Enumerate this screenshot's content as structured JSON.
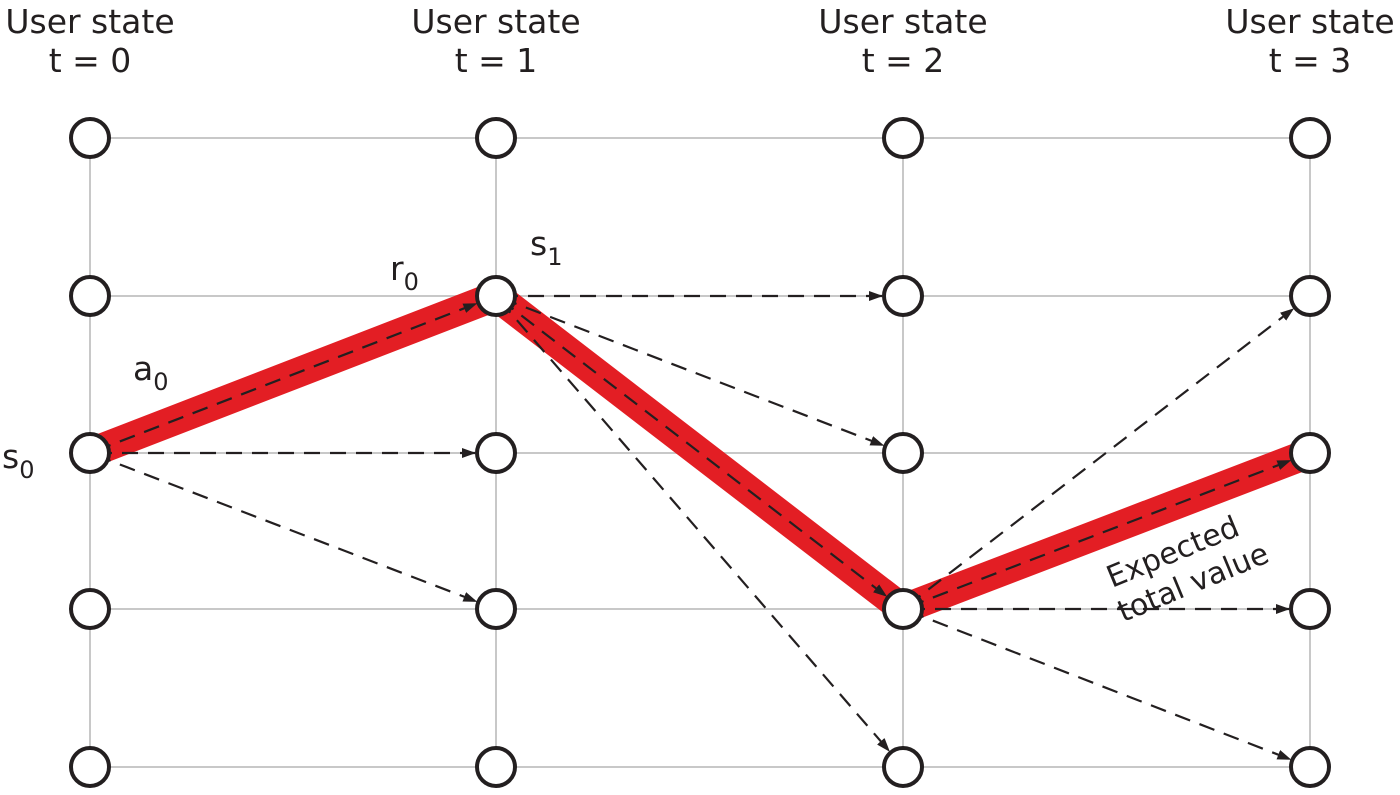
{
  "diagram": {
    "columns": [
      {
        "title": "User state",
        "subtitle": "t = 0"
      },
      {
        "title": "User state",
        "subtitle": "t = 1"
      },
      {
        "title": "User state",
        "subtitle": "t = 2"
      },
      {
        "title": "User state",
        "subtitle": "t = 3"
      }
    ],
    "states_per_column": 5,
    "labels": {
      "s0": {
        "base": "s",
        "index": "0"
      },
      "a0": {
        "base": "a",
        "index": "0"
      },
      "r0": {
        "base": "r",
        "index": "0"
      },
      "s1": {
        "base": "s",
        "index": "1"
      }
    },
    "annotation": {
      "line1": "Expected",
      "line2": "total value"
    },
    "highlight_color": "#e31e24",
    "line_color": "#231f20",
    "grid_color": "#c8c8c8",
    "node_stroke": "#231f20",
    "node_fill": "#ffffff",
    "highlighted_path": [
      [
        0,
        2
      ],
      [
        1,
        1
      ],
      [
        2,
        3
      ],
      [
        3,
        2
      ]
    ],
    "dashed_transitions": [
      {
        "from": [
          0,
          2
        ],
        "to": [
          1,
          1
        ]
      },
      {
        "from": [
          0,
          2
        ],
        "to": [
          1,
          2
        ]
      },
      {
        "from": [
          0,
          2
        ],
        "to": [
          1,
          3
        ]
      },
      {
        "from": [
          1,
          1
        ],
        "to": [
          2,
          1
        ]
      },
      {
        "from": [
          1,
          1
        ],
        "to": [
          2,
          2
        ]
      },
      {
        "from": [
          1,
          1
        ],
        "to": [
          2,
          3
        ]
      },
      {
        "from": [
          1,
          1
        ],
        "to": [
          2,
          4
        ]
      },
      {
        "from": [
          2,
          3
        ],
        "to": [
          3,
          1
        ]
      },
      {
        "from": [
          2,
          3
        ],
        "to": [
          3,
          2
        ]
      },
      {
        "from": [
          2,
          3
        ],
        "to": [
          3,
          3
        ]
      },
      {
        "from": [
          2,
          3
        ],
        "to": [
          3,
          4
        ]
      }
    ]
  }
}
